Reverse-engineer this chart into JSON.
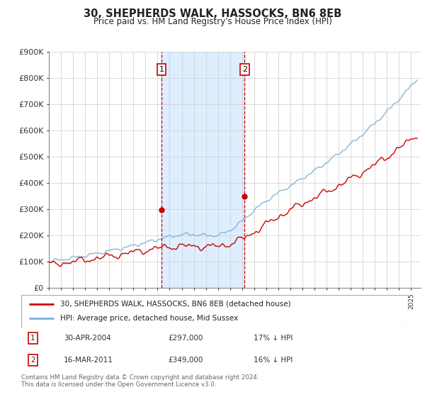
{
  "title": "30, SHEPHERDS WALK, HASSOCKS, BN6 8EB",
  "subtitle": "Price paid vs. HM Land Registry's House Price Index (HPI)",
  "legend_line1": "30, SHEPHERDS WALK, HASSOCKS, BN6 8EB (detached house)",
  "legend_line2": "HPI: Average price, detached house, Mid Sussex",
  "info_rows": [
    {
      "num": "1",
      "date": "30-APR-2004",
      "price": "£297,000",
      "pct": "17% ↓ HPI"
    },
    {
      "num": "2",
      "date": "16-MAR-2011",
      "price": "£349,000",
      "pct": "16% ↓ HPI"
    }
  ],
  "footer": "Contains HM Land Registry data © Crown copyright and database right 2024.\nThis data is licensed under the Open Government Licence v3.0.",
  "red_color": "#cc0000",
  "blue_color": "#7ab0d4",
  "shade_color": "#ddeeff",
  "marker1_year": 2004.33,
  "marker2_year": 2011.21,
  "p1": 297000,
  "p2": 349000,
  "ylim": [
    0,
    900000
  ],
  "yticks": [
    0,
    100000,
    200000,
    300000,
    400000,
    500000,
    600000,
    700000,
    800000,
    900000
  ],
  "ytick_labels": [
    "£0",
    "£100K",
    "£200K",
    "£300K",
    "£400K",
    "£500K",
    "£600K",
    "£700K",
    "£800K",
    "£900K"
  ],
  "xlim_start": 1995.0,
  "xlim_end": 2025.8
}
